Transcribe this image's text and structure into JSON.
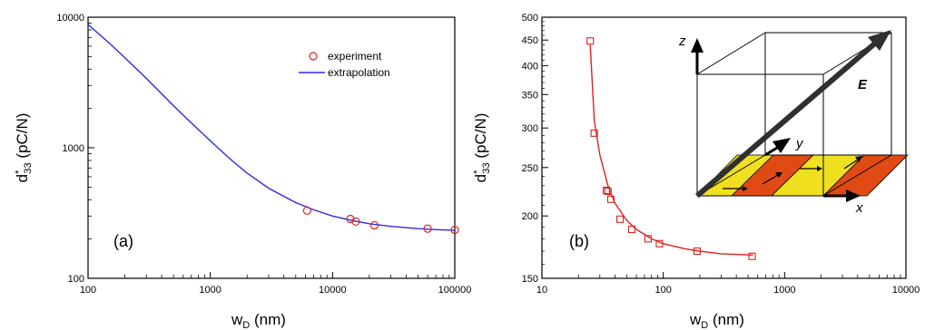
{
  "chart_data": [
    {
      "type": "scatter",
      "panel_label": "(a)",
      "xlabel": "w",
      "xlabel_sub": "D",
      "xlabel_unit": " (nm)",
      "ylabel": "d",
      "ylabel_sup": "*",
      "ylabel_sub": "33",
      "ylabel_unit": " (pC/N)",
      "xscale": "log",
      "yscale": "log",
      "xlim": [
        100,
        100000
      ],
      "ylim": [
        100,
        10000
      ],
      "xticks": [
        100,
        1000,
        10000,
        100000
      ],
      "xtick_labels": [
        "100",
        "1000",
        "10000",
        "100000"
      ],
      "yticks": [
        100,
        1000,
        10000
      ],
      "ytick_labels": [
        "100",
        "1000",
        "10000"
      ],
      "legend_position": "top-right",
      "series": [
        {
          "name": "experiment",
          "kind": "markers",
          "marker": "circle",
          "color": "#e02020",
          "x": [
            6200,
            14000,
            15500,
            22000,
            60000,
            100000
          ],
          "y": [
            330,
            285,
            272,
            255,
            240,
            235
          ]
        },
        {
          "name": "extrapolation",
          "kind": "line",
          "color": "#2b2be0",
          "x": [
            100,
            150,
            200,
            300,
            500,
            700,
            1000,
            1500,
            2000,
            3000,
            5000,
            7000,
            10000,
            15000,
            20000,
            30000,
            50000,
            70000,
            100000
          ],
          "y": [
            8800,
            6300,
            4900,
            3400,
            2100,
            1550,
            1130,
            800,
            640,
            490,
            380,
            335,
            300,
            275,
            262,
            250,
            240,
            236,
            233
          ]
        }
      ]
    },
    {
      "type": "scatter",
      "panel_label": "(b)",
      "xlabel": "w",
      "xlabel_sub": "D",
      "xlabel_unit": " (nm)",
      "ylabel": "d",
      "ylabel_sup": "*",
      "ylabel_sub": "33",
      "ylabel_unit": " (pC/N)",
      "xscale": "log",
      "yscale": "log",
      "xlim": [
        10,
        10000
      ],
      "ylim": [
        150,
        500
      ],
      "xticks": [
        10,
        100,
        1000,
        10000
      ],
      "xtick_labels": [
        "10",
        "100",
        "1000",
        "10000"
      ],
      "yticks": [
        150,
        200,
        250,
        300,
        350,
        400,
        450,
        500
      ],
      "ytick_labels": [
        "150",
        "200",
        "250",
        "300",
        "350",
        "400",
        "450",
        "500"
      ],
      "series": [
        {
          "name": "",
          "kind": "markers",
          "marker": "square",
          "color": "#e02020",
          "x": [
            25,
            27,
            34,
            35,
            37,
            44,
            55,
            75,
            93,
            190,
            540
          ],
          "y": [
            448,
            293,
            225,
            224,
            216,
            197,
            188,
            180,
            176,
            170,
            166
          ]
        },
        {
          "name": "",
          "kind": "line",
          "color": "#e02020",
          "x": [
            25,
            27,
            30,
            35,
            40,
            50,
            60,
            80,
            100,
            150,
            200,
            300,
            550
          ],
          "y": [
            440,
            310,
            265,
            230,
            212,
            196,
            188,
            180,
            176,
            172,
            170,
            168,
            167
          ]
        }
      ],
      "inset": {
        "description_labels": [
          "z",
          "y",
          "x",
          "E"
        ],
        "stripe_colors": [
          "#f0e020",
          "#e04a14"
        ],
        "field_arrow_color": "#303030"
      }
    }
  ]
}
